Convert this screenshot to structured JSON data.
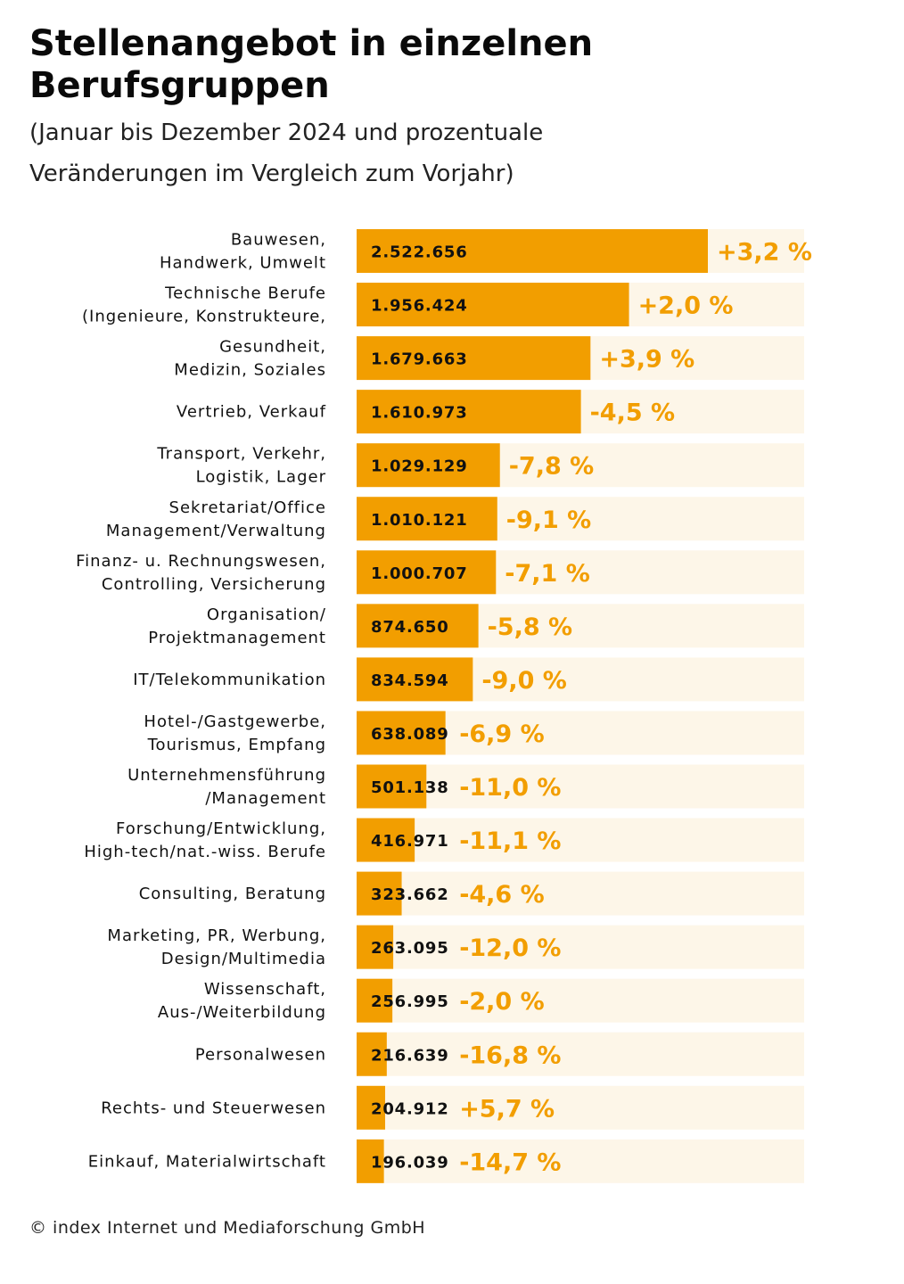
{
  "header": {
    "title_line1": "Stellenangebot in einzelnen",
    "title_line2": "Berufsgruppen",
    "subtitle_line1": "(Januar bis Dezember 2024 und prozentuale",
    "subtitle_line2": "Veränderungen im Vergleich zum Vorjahr)"
  },
  "footer": {
    "copyright": "© index Internet und Mediaforschung GmbH"
  },
  "colors": {
    "bar": "#f29e00",
    "track": "#fdf6e8",
    "change_text": "#f29e00",
    "value_text": "#111111"
  },
  "chart_data": {
    "type": "bar",
    "orientation": "horizontal",
    "title": "Stellenangebot in einzelnen Berufsgruppen",
    "subtitle": "(Januar bis Dezember 2024 und prozentuale Veränderungen im Vergleich zum Vorjahr)",
    "xlim": [
      0,
      2522656
    ],
    "grid": false,
    "categories": [
      [
        "Bauwesen,",
        "Handwerk, Umwelt"
      ],
      [
        "Technische Berufe",
        "(Ingenieure, Konstrukteure,"
      ],
      [
        "Gesundheit,",
        "Medizin, Soziales"
      ],
      [
        "Vertrieb, Verkauf"
      ],
      [
        "Transport, Verkehr,",
        "Logistik, Lager"
      ],
      [
        "Sekretariat/Office",
        "Management/Verwaltung"
      ],
      [
        "Finanz- u. Rechnungswesen,",
        "Controlling, Versicherung"
      ],
      [
        "Organisation/",
        "Projektmanagement"
      ],
      [
        "IT/Telekommunikation"
      ],
      [
        "Hotel-/Gastgewerbe,",
        "Tourismus, Empfang"
      ],
      [
        "Unternehmensführung",
        "/Management"
      ],
      [
        "Forschung/Entwicklung,",
        "High-tech/nat.-wiss. Berufe"
      ],
      [
        "Consulting, Beratung"
      ],
      [
        "Marketing, PR, Werbung,",
        "Design/Multimedia"
      ],
      [
        "Wissenschaft,",
        "Aus-/Weiterbildung"
      ],
      [
        "Personalwesen"
      ],
      [
        "Rechts- und Steuerwesen"
      ],
      [
        "Einkauf, Materialwirtschaft"
      ]
    ],
    "values": [
      2522656,
      1956424,
      1679663,
      1610973,
      1029129,
      1010121,
      1000707,
      874650,
      834594,
      638089,
      501138,
      416971,
      323662,
      263095,
      256995,
      216639,
      204912,
      196039
    ],
    "value_labels": [
      "2.522.656",
      "1.956.424",
      "1.679.663",
      "1.610.973",
      "1.029.129",
      "1.010.121",
      "1.000.707",
      "874.650",
      "834.594",
      "638.089",
      "501.138",
      "416.971",
      "323.662",
      "263.095",
      "256.995",
      "216.639",
      "204.912",
      "196.039"
    ],
    "change_labels": [
      "+3,2 %",
      "+2,0 %",
      "+3,9 %",
      "-4,5 %",
      "-7,8 %",
      "-9,1 %",
      "-7,1 %",
      "-5,8 %",
      "-9,0 %",
      "-6,9 %",
      "-11,0 %",
      "-11,1 %",
      "-4,6 %",
      "-12,0 %",
      "-2,0 %",
      "-16,8 %",
      "+5,7 %",
      "-14,7 %"
    ]
  }
}
